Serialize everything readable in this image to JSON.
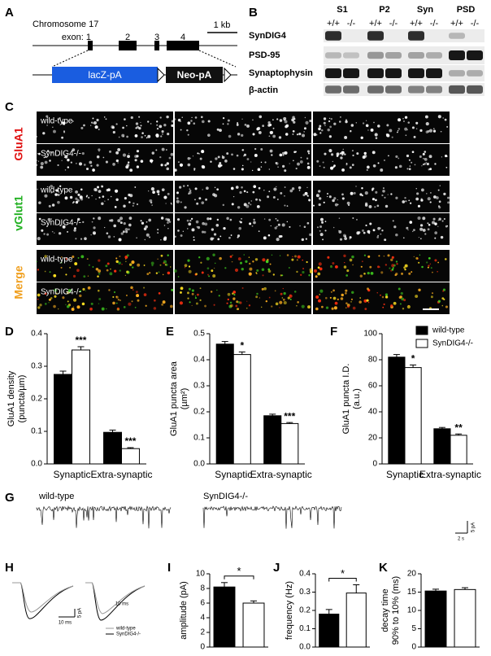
{
  "panels": {
    "a": "A",
    "b": "B",
    "c": "C",
    "d": "D",
    "e": "E",
    "f": "F",
    "g": "G",
    "h": "H",
    "i": "I",
    "j": "J",
    "k": "K"
  },
  "panel_a": {
    "chromosome": "Chromosome 17",
    "scale": "1 kb",
    "exon_label": "exon: 1",
    "exons": [
      "2",
      "3",
      "4"
    ],
    "cassette_1": "lacZ-pA",
    "cassette_2": "Neo-pA"
  },
  "panel_b": {
    "fractions": [
      "S1",
      "P2",
      "Syn",
      "PSD"
    ],
    "genotypes": [
      "+/+",
      "-/-",
      "+/+",
      "-/-",
      "+/+",
      "-/-",
      "+/+",
      "-/-"
    ],
    "proteins": [
      "SynDIG4",
      "PSD-95",
      "Synaptophysin",
      "β-actin"
    ]
  },
  "panel_c": {
    "channels": [
      "GluA1",
      "vGlut1",
      "Merge"
    ],
    "rows": [
      "wild-type",
      "SynDIG4-/-"
    ]
  },
  "panel_g": {
    "traces": [
      "wild-type",
      "SynDIG4-/-"
    ],
    "scale_y": "5 pA",
    "scale_x": "2 s"
  },
  "panel_h": {
    "scale_x": "10 ms",
    "scale_y": "5 pA",
    "legend": [
      "wild-type",
      "SynDIG4-/-"
    ]
  },
  "chart_data": [
    {
      "type": "bar",
      "ylabel": [
        "GluA1 density",
        "(puncta/µm)"
      ],
      "categories": [
        "Synaptic",
        "Extra-synaptic"
      ],
      "series": [
        {
          "color": "#000000",
          "values": [
            0.275,
            0.097
          ],
          "errors": [
            0.01,
            0.007
          ]
        },
        {
          "color": "#ffffff",
          "values": [
            0.35,
            0.047
          ],
          "errors": [
            0.01,
            0.003
          ],
          "labels": [
            "***",
            "***"
          ]
        }
      ],
      "ylim": [
        0,
        0.4
      ],
      "yticks": [
        {
          "value": 0,
          "label": "0.0"
        },
        0.1,
        0.2,
        0.3,
        0.4
      ]
    },
    {
      "type": "bar",
      "ylabel": [
        "GluA1 puncta area",
        "(µm²)"
      ],
      "categories": [
        "Synaptic",
        "Extra-synaptic"
      ],
      "series": [
        {
          "color": "#000000",
          "values": [
            0.46,
            0.185
          ],
          "errors": [
            0.01,
            0.006
          ]
        },
        {
          "color": "#ffffff",
          "values": [
            0.42,
            0.155
          ],
          "errors": [
            0.01,
            0.004
          ],
          "labels": [
            "*",
            "***"
          ]
        }
      ],
      "ylim": [
        0,
        0.5
      ],
      "yticks": [
        {
          "value": 0,
          "label": "0.0"
        },
        0.1,
        0.2,
        0.3,
        0.4,
        0.5
      ]
    },
    {
      "type": "bar",
      "ylabel": [
        "GluA1 puncta I.D.",
        "(a.u.)"
      ],
      "categories": [
        "Synaptic",
        "Extra-synaptic"
      ],
      "series": [
        {
          "name": "wild-type",
          "color": "#000000",
          "values": [
            82,
            27
          ],
          "errors": [
            2,
            1
          ]
        },
        {
          "name": "SynDIG4-/-",
          "color": "#ffffff",
          "values": [
            74,
            22
          ],
          "errors": [
            2,
            1
          ],
          "labels": [
            "*",
            "**"
          ]
        }
      ],
      "legend": "upper right",
      "ylim": [
        0,
        100
      ],
      "yticks": [
        0,
        20,
        40,
        60,
        80,
        100
      ]
    },
    {
      "type": "bar",
      "ylabel": [
        "amplitude (pA)"
      ],
      "categories": [
        null,
        null
      ],
      "values": [
        8.2,
        6.0
      ],
      "errors": [
        0.6,
        0.3
      ],
      "colors": [
        "#000000",
        "#ffffff"
      ],
      "significance": "*",
      "ylim": [
        0,
        10
      ],
      "yticks": [
        0,
        2,
        4,
        6,
        8,
        10
      ]
    },
    {
      "type": "bar",
      "ylabel": [
        "frequency (Hz)"
      ],
      "categories": [
        null,
        null
      ],
      "values": [
        0.18,
        0.295
      ],
      "errors": [
        0.025,
        0.045
      ],
      "colors": [
        "#000000",
        "#ffffff"
      ],
      "significance": "*",
      "ylim": [
        0,
        0.4
      ],
      "yticks": [
        {
          "value": 0,
          "label": "0.0"
        },
        0.1,
        0.2,
        0.3,
        0.4
      ]
    },
    {
      "type": "bar",
      "ylabel": [
        "decay time",
        "90% to 10% (ms)"
      ],
      "categories": [
        null,
        null
      ],
      "values": [
        15.3,
        15.7
      ],
      "errors": [
        0.5,
        0.5
      ],
      "colors": [
        "#000000",
        "#ffffff"
      ],
      "ylim": [
        0,
        20
      ],
      "yticks": [
        0,
        5,
        10,
        15,
        20
      ]
    }
  ]
}
